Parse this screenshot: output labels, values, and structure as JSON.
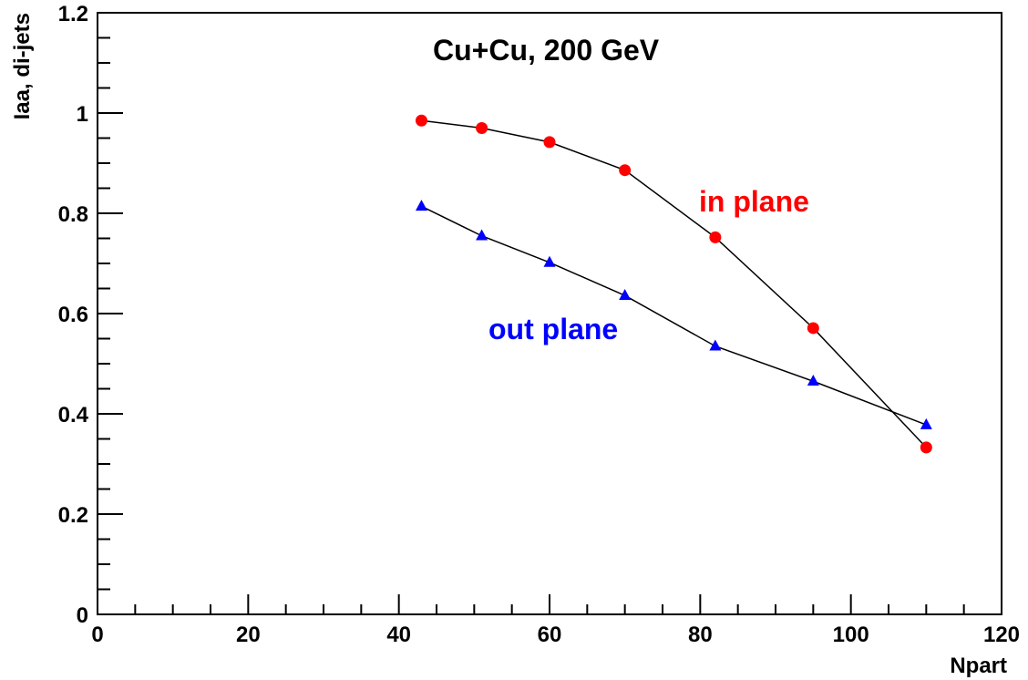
{
  "chart_data": {
    "type": "line",
    "title": "Cu+Cu, 200 GeV",
    "xlabel": "Npart",
    "ylabel": "Iaa, di-jets",
    "xlim": [
      0,
      120
    ],
    "ylim": [
      0,
      1.2
    ],
    "x_ticks": [
      0,
      20,
      40,
      60,
      80,
      100,
      120
    ],
    "y_ticks": [
      0,
      0.2,
      0.4,
      0.6,
      0.8,
      1,
      1.2
    ],
    "x_tick_labels": [
      "0",
      "20",
      "40",
      "60",
      "80",
      "100",
      "120"
    ],
    "y_tick_labels": [
      "0",
      "0.2",
      "0.4",
      "0.6",
      "0.8",
      "1",
      "1.2"
    ],
    "grid": false,
    "legend": "none",
    "series": [
      {
        "name": "in plane",
        "color": "#ff0000",
        "marker": "circle",
        "x": [
          43,
          51,
          60,
          70,
          82,
          95,
          110
        ],
        "y": [
          0.985,
          0.97,
          0.942,
          0.886,
          0.752,
          0.571,
          0.333
        ]
      },
      {
        "name": "out plane",
        "color": "#0000ff",
        "marker": "triangle",
        "x": [
          43,
          51,
          60,
          70,
          82,
          95,
          110
        ],
        "y": [
          0.814,
          0.755,
          0.702,
          0.636,
          0.535,
          0.465,
          0.378
        ]
      }
    ]
  }
}
